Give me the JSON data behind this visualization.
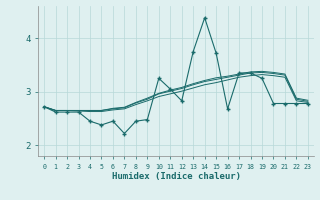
{
  "xlabel": "Humidex (Indice chaleur)",
  "x": [
    0,
    1,
    2,
    3,
    4,
    5,
    6,
    7,
    8,
    9,
    10,
    11,
    12,
    13,
    14,
    15,
    16,
    17,
    18,
    19,
    20,
    21,
    22,
    23
  ],
  "line_main": [
    2.72,
    2.62,
    2.62,
    2.62,
    2.45,
    2.38,
    2.45,
    2.22,
    2.45,
    2.48,
    3.25,
    3.05,
    2.83,
    3.75,
    4.38,
    3.72,
    2.68,
    3.35,
    3.35,
    3.25,
    2.78,
    2.78,
    2.78,
    2.78
  ],
  "line_p1": [
    2.72,
    2.65,
    2.65,
    2.64,
    2.63,
    2.63,
    2.66,
    2.68,
    2.76,
    2.83,
    2.91,
    2.96,
    3.01,
    3.07,
    3.13,
    3.17,
    3.22,
    3.27,
    3.3,
    3.32,
    3.3,
    3.27,
    2.83,
    2.8
  ],
  "line_p2": [
    2.72,
    2.65,
    2.65,
    2.65,
    2.65,
    2.65,
    2.68,
    2.7,
    2.79,
    2.86,
    2.96,
    3.01,
    3.06,
    3.13,
    3.19,
    3.23,
    3.27,
    3.31,
    3.35,
    3.36,
    3.34,
    3.31,
    2.86,
    2.82
  ],
  "line_p3": [
    2.72,
    2.65,
    2.65,
    2.65,
    2.65,
    2.65,
    2.69,
    2.71,
    2.8,
    2.88,
    2.97,
    3.03,
    3.08,
    3.15,
    3.21,
    3.26,
    3.29,
    3.33,
    3.37,
    3.38,
    3.36,
    3.33,
    2.88,
    2.84
  ],
  "bg_color": "#dff0f0",
  "grid_color": "#b8d8d8",
  "line_color": "#1a6b6b",
  "ylim": [
    1.8,
    4.6
  ],
  "yticks": [
    2,
    3,
    4
  ],
  "xlim": [
    -0.5,
    23.5
  ]
}
